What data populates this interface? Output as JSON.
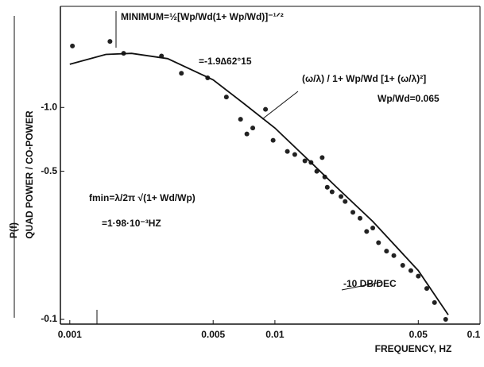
{
  "chart_data": {
    "type": "scatter",
    "x_label": "FREQUENCY, HZ",
    "y_label": "QUAD POWER / CO-POWER",
    "y_label_prefix": "P(f)",
    "log_x": true,
    "log_y": true,
    "xlim": [
      0.0009,
      0.1
    ],
    "ylim": [
      0.095,
      3
    ],
    "xticks": [
      0.001,
      0.005,
      0.01,
      0.05,
      0.1
    ],
    "yticks": [
      {
        "value": 1,
        "label": "-1.0"
      },
      {
        "value": 0.5,
        "label": "-0.5"
      },
      {
        "value": 0.1,
        "label": "-0.1"
      }
    ],
    "series": [
      {
        "style": "markers",
        "color": "#222",
        "x": [
          0.00103,
          0.00157,
          0.00183,
          0.0028,
          0.0035,
          0.0047,
          0.0058,
          0.0068,
          0.0073,
          0.0078,
          0.009,
          0.0098,
          0.0115,
          0.0125,
          0.014,
          0.015,
          0.016,
          0.017,
          0.0175,
          0.018,
          0.019,
          0.021,
          0.022,
          0.024,
          0.026,
          0.028,
          0.03,
          0.032,
          0.035,
          0.038,
          0.042,
          0.046,
          0.05,
          0.055,
          0.06,
          0.068
        ],
        "values": [
          1.95,
          2.05,
          1.8,
          1.75,
          1.45,
          1.38,
          1.12,
          0.88,
          0.75,
          0.8,
          0.98,
          0.7,
          0.62,
          0.6,
          0.56,
          0.55,
          0.5,
          0.58,
          0.47,
          0.42,
          0.4,
          0.38,
          0.36,
          0.32,
          0.3,
          0.26,
          0.27,
          0.23,
          0.21,
          0.2,
          0.18,
          0.17,
          0.16,
          0.14,
          0.12,
          0.1
        ]
      },
      {
        "style": "line",
        "color": "#111",
        "x": [
          0.001,
          0.0015,
          0.002,
          0.003,
          0.005,
          0.007,
          0.01,
          0.015,
          0.02,
          0.03,
          0.05,
          0.07
        ],
        "values": [
          1.6,
          1.78,
          1.8,
          1.7,
          1.35,
          1.05,
          0.8,
          0.55,
          0.42,
          0.29,
          0.17,
          0.105
        ]
      }
    ],
    "annotations": [
      "MINIMUM=½[Wp/Wd(1+ Wp/Wd)]⁻¹ᐟ²",
      "=-1.9∆62°15",
      "(ω/λ) / 1+ Wp/Wd [1+ (ω/λ)²]",
      "Wp/Wd=0.065",
      "fmin=λ/2π √(1+ Wd/Wp)",
      "=1·98·10⁻³HZ",
      "-10 DB/DEC"
    ]
  }
}
